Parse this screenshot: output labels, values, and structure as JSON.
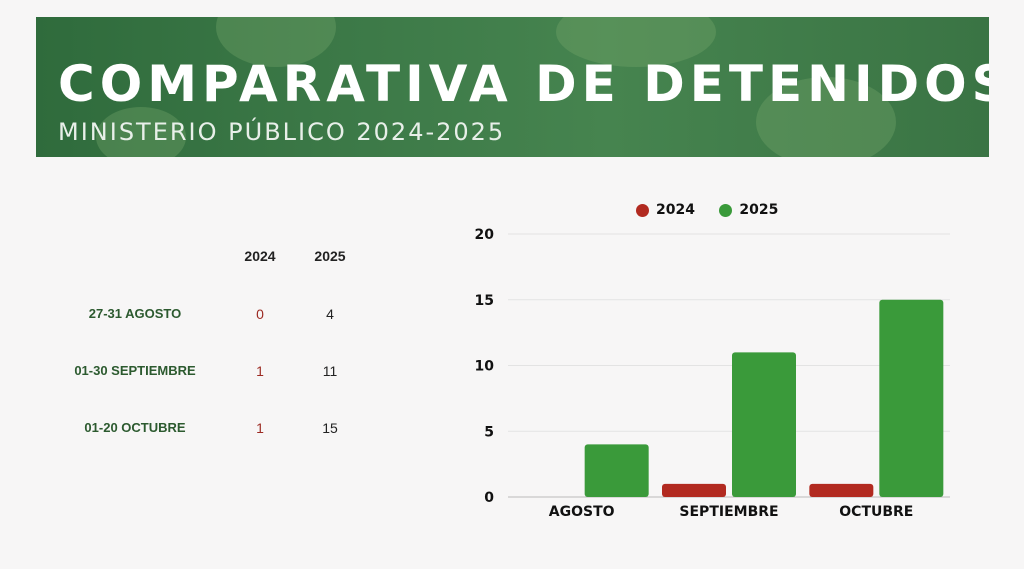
{
  "header": {
    "title": "COMPARATIVA DE DETENIDOS",
    "subtitle": "MINISTERIO PÚBLICO 2024-2025"
  },
  "table": {
    "col_2024": "2024",
    "col_2025": "2025",
    "rows": [
      {
        "label": "27-31 AGOSTO",
        "v2024": "0",
        "v2025": "4"
      },
      {
        "label": "01-30 SEPTIEMBRE",
        "v2024": "1",
        "v2025": "11"
      },
      {
        "label": "01-20 OCTUBRE",
        "v2024": "1",
        "v2025": "15"
      }
    ]
  },
  "colors": {
    "series_2024": "#b22a20",
    "series_2025": "#3a9a3a",
    "banner": "#3d7a48"
  },
  "chart_data": {
    "type": "bar",
    "categories": [
      "AGOSTO",
      "SEPTIEMBRE",
      "OCTUBRE"
    ],
    "series": [
      {
        "name": "2024",
        "values": [
          0,
          1,
          1
        ]
      },
      {
        "name": "2025",
        "values": [
          4,
          11,
          15
        ]
      }
    ],
    "ylim": [
      0,
      20
    ],
    "yticks": [
      0,
      5,
      10,
      15,
      20
    ],
    "grid": true,
    "legend": "top-center"
  }
}
